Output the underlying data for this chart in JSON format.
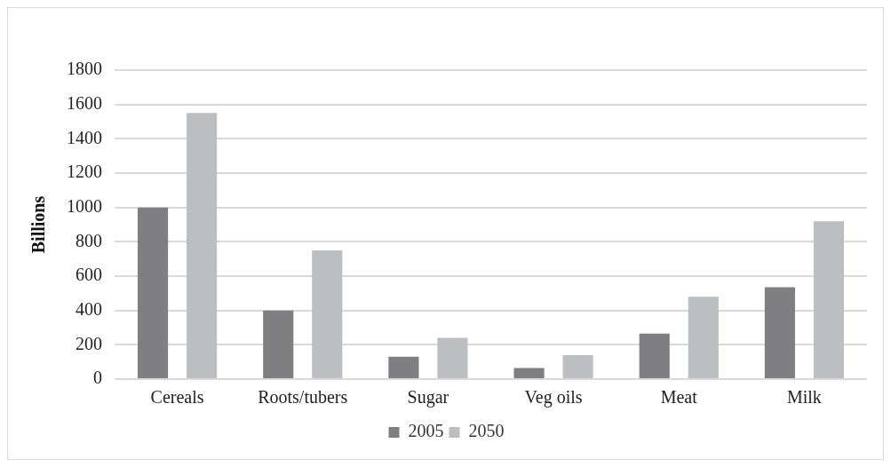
{
  "chart_data": {
    "type": "bar",
    "ylabel": "Billions",
    "categories": [
      "Cereals",
      "Roots/tubers",
      "Sugar",
      "Veg oils",
      "Meat",
      "Milk"
    ],
    "series": [
      {
        "name": "2005",
        "color": "#7f7f82",
        "values": [
          1000,
          400,
          130,
          65,
          265,
          535
        ]
      },
      {
        "name": "2050",
        "color": "#bdbec1",
        "values": [
          1550,
          750,
          240,
          140,
          480,
          920
        ]
      }
    ],
    "ylim": [
      0,
      1800
    ],
    "yticks": [
      0,
      200,
      400,
      600,
      800,
      1000,
      1200,
      1400,
      1600,
      1800
    ],
    "grid": "y",
    "legend": "bottom"
  }
}
